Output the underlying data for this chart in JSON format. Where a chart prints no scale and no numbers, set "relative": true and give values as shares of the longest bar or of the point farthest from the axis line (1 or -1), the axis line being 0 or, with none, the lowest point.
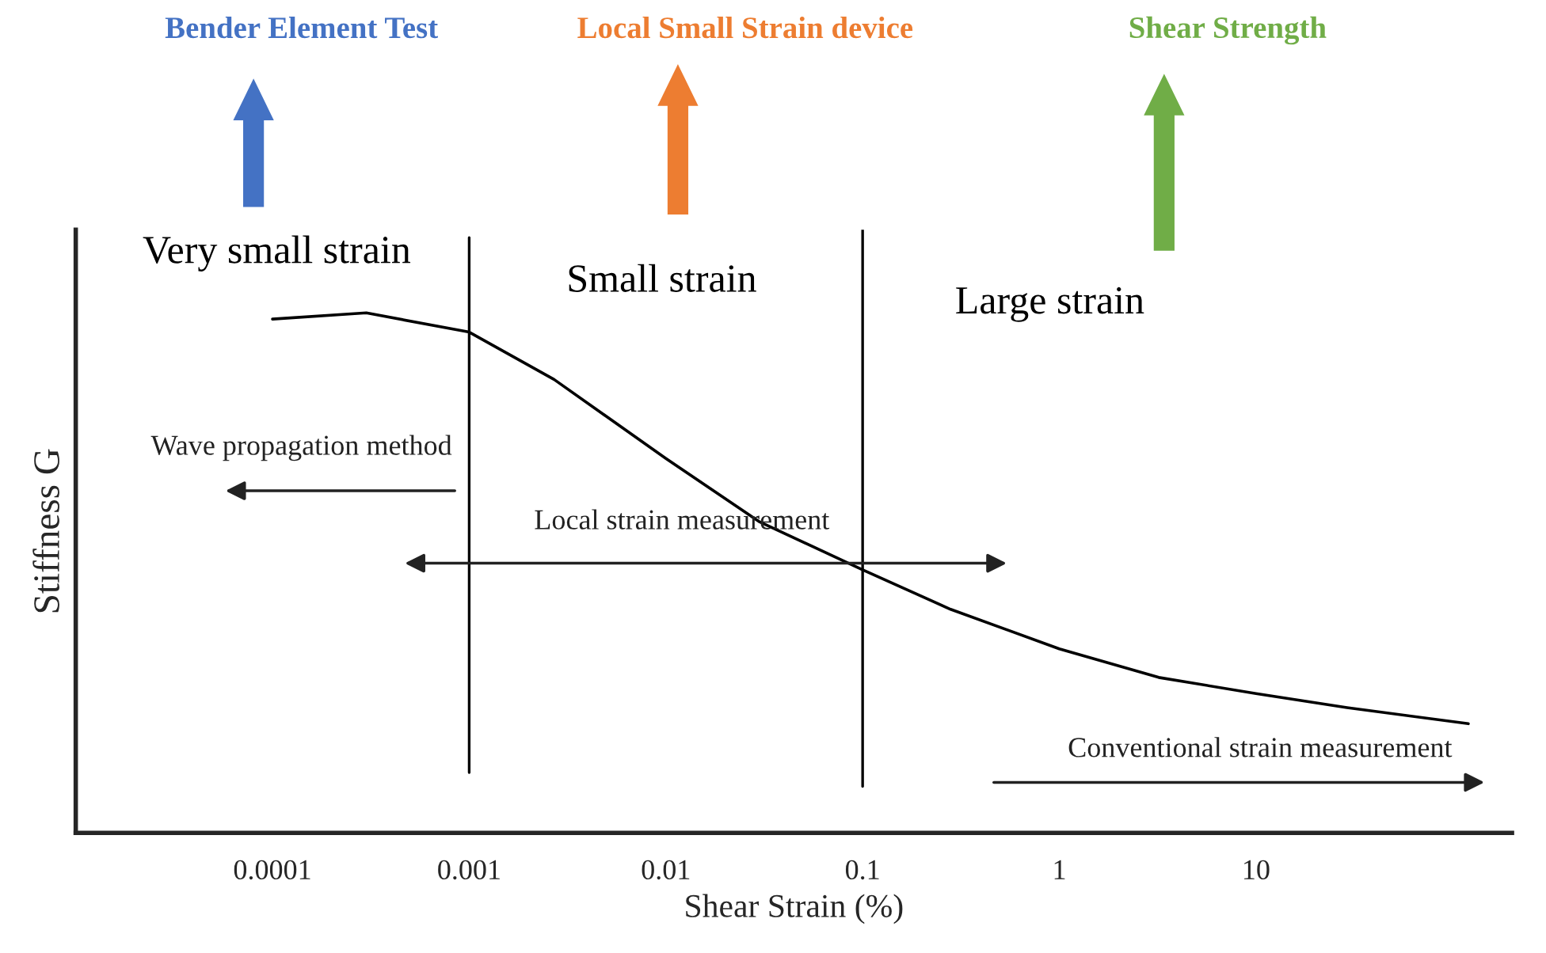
{
  "chart_data": {
    "type": "line",
    "relative": true,
    "log": "x",
    "xlabel": "Shear Strain (%)",
    "ylabel": "Stiffness G",
    "x": [
      0.0001,
      0.0003,
      0.001,
      0.0027,
      0.01,
      0.03,
      0.1,
      0.28,
      1,
      3.2,
      10,
      29,
      120
    ],
    "series": [
      {
        "color": "#000000",
        "values": [
          0.988,
          1.0,
          0.963,
          0.872,
          0.72,
          0.598,
          0.506,
          0.43,
          0.354,
          0.299,
          0.268,
          0.241,
          0.21
        ]
      }
    ],
    "xlim": [
      1e-05,
      200
    ],
    "xticks": [
      0.0001,
      0.001,
      0.01,
      0.1,
      1,
      10
    ],
    "ref_lines": [
      {
        "axis": "x",
        "value": 0.001,
        "color": "#000000"
      },
      {
        "axis": "x",
        "value": 0.1,
        "color": "#000000"
      }
    ],
    "annotations": [
      "Bender Element Test",
      "Local Small Strain device",
      "Shear Strength",
      "Very small strain",
      "Small strain",
      "Large strain",
      "Wave propagation method",
      "Local strain measurement",
      "Conventional strain measurement"
    ],
    "grid": false,
    "legend": false,
    "marker": "none",
    "line_style": "solid"
  }
}
